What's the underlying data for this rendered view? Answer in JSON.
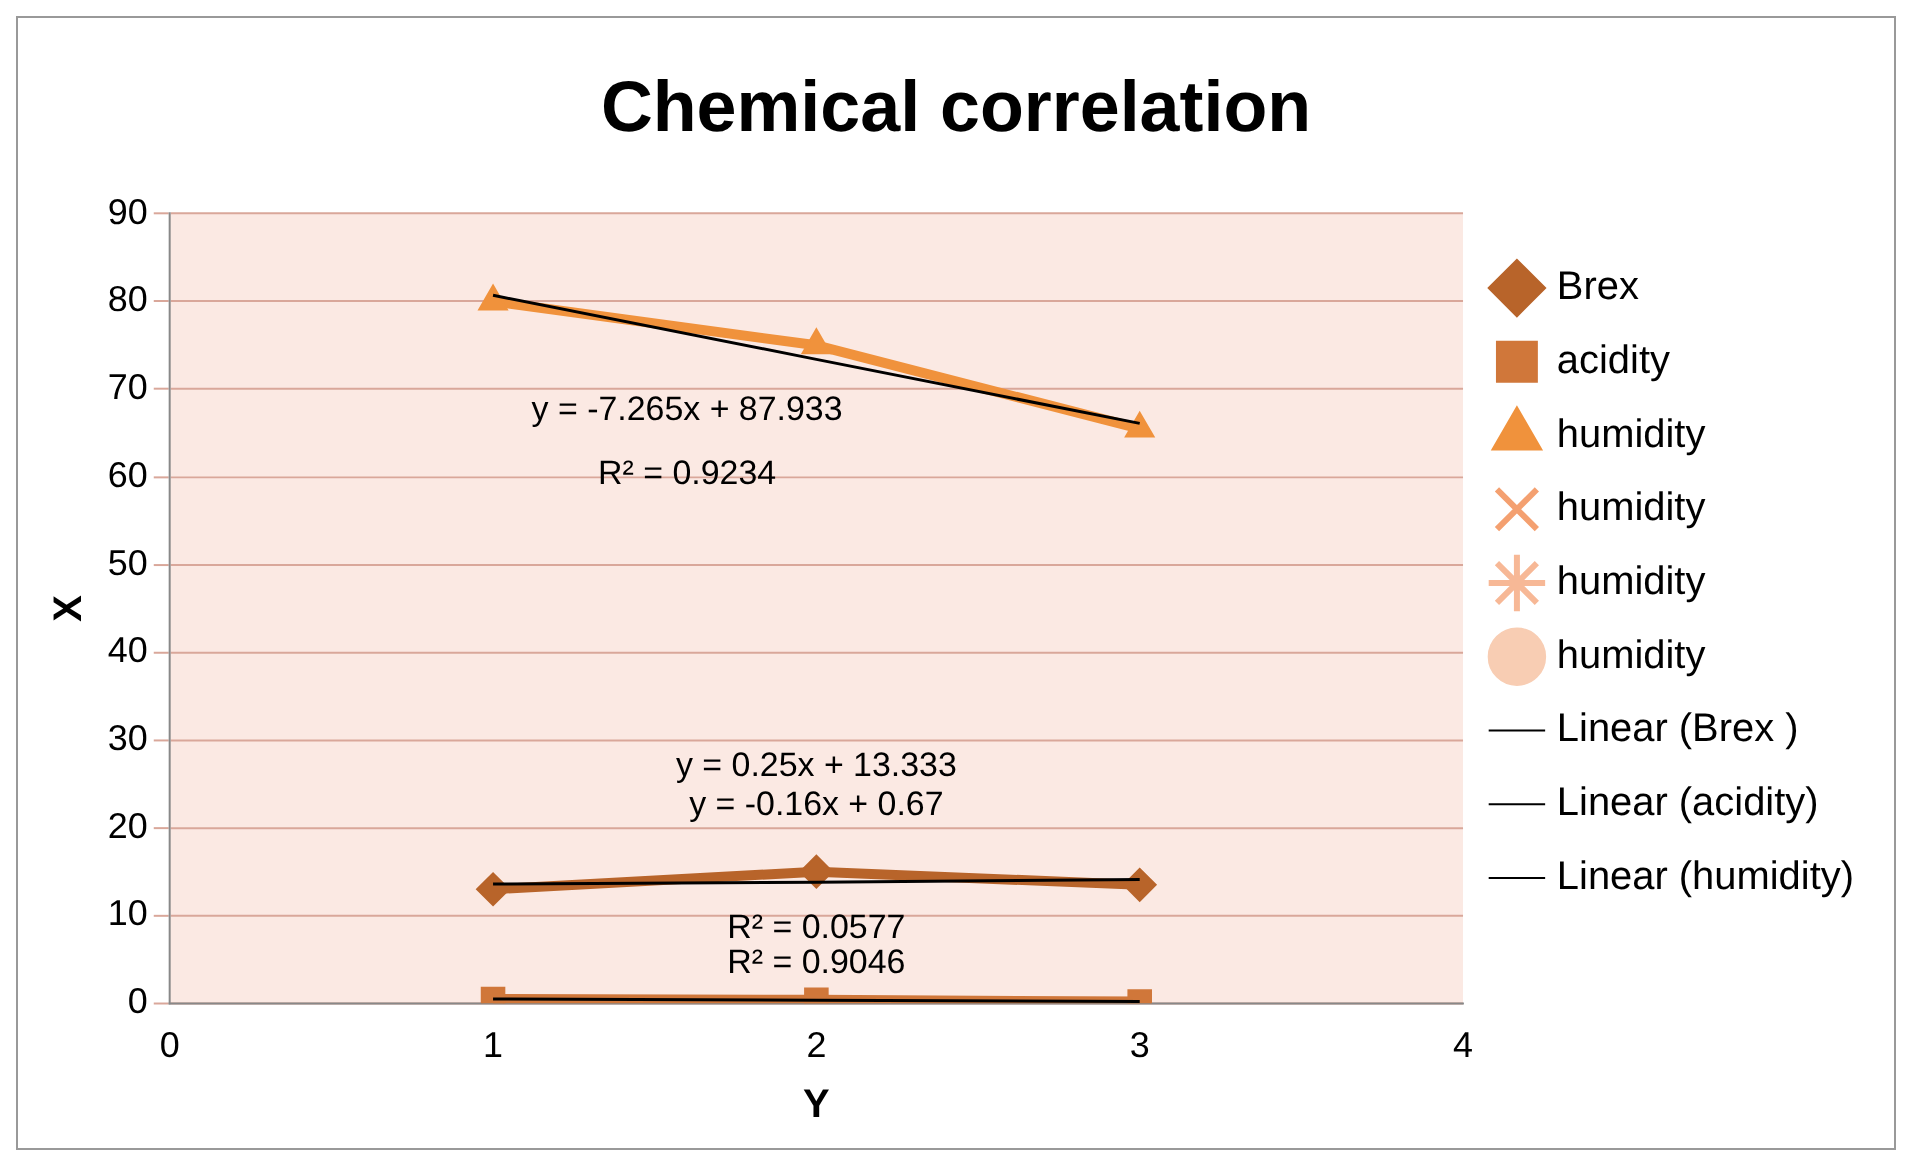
{
  "chart_data": {
    "type": "scatter",
    "title": "Chemical correlation",
    "xlabel": "Y",
    "ylabel": "X",
    "xlim": [
      0,
      4
    ],
    "xticks": [
      0,
      1,
      2,
      3,
      4
    ],
    "ylim": [
      0,
      90
    ],
    "yticks": [
      0,
      10,
      20,
      30,
      40,
      50,
      60,
      70,
      80,
      90
    ],
    "grid": "y",
    "legend": "right",
    "line_style": "solid",
    "x": [
      1,
      2,
      3
    ],
    "series": [
      {
        "name": "Brex",
        "type": "line",
        "color": "#b8642a",
        "marker": "diamond",
        "values": [
          13,
          15,
          13.5
        ]
      },
      {
        "name": "acidity",
        "type": "line",
        "color": "#d0773a",
        "marker": "square",
        "values": [
          0.5,
          0.4,
          0.2
        ]
      },
      {
        "name": "humidity",
        "type": "line",
        "color": "#f0923c",
        "marker": "triangle",
        "values": [
          80,
          75,
          65.5
        ]
      },
      {
        "name": "humidity",
        "type": "line",
        "color": "#f4a070",
        "marker": "cross",
        "values": [
          null,
          null,
          null
        ]
      },
      {
        "name": "humidity",
        "type": "line",
        "color": "#f7b896",
        "marker": "star",
        "values": [
          null,
          null,
          null
        ]
      },
      {
        "name": "humidity",
        "type": "line",
        "color": "#f8cdb3",
        "marker": "circle",
        "values": [
          null,
          null,
          null
        ]
      },
      {
        "name": "Linear (Brex )",
        "type": "line",
        "color": "#000000",
        "marker": "none",
        "values": [
          13.6,
          13.8,
          14.1
        ]
      },
      {
        "name": "Linear (acidity)",
        "type": "line",
        "color": "#000000",
        "marker": "none",
        "values": [
          0.5,
          0.35,
          0.2
        ]
      },
      {
        "name": "Linear (humidity)",
        "type": "line",
        "color": "#000000",
        "marker": "none",
        "values": [
          80.7,
          73.4,
          66.1
        ]
      }
    ],
    "annotations": [
      "y = -7.265x + 87.933",
      "R² = 0.9234",
      "y = 0.25x + 13.333",
      "y = -0.16x + 0.67",
      "R² = 0.0577",
      "R² = 0.9046"
    ]
  }
}
